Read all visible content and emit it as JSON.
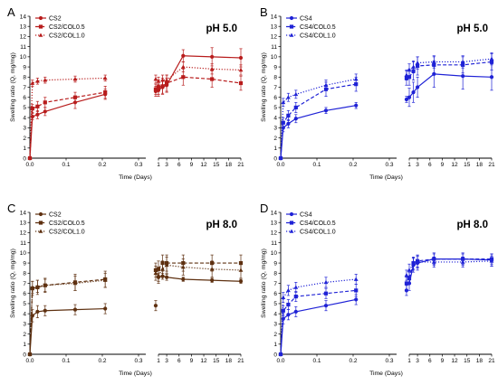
{
  "chart_data": [
    {
      "type": "line",
      "panel_label": "A",
      "annotation": "pH 5.0",
      "color": "#b81c1c",
      "xlabel": "Time (Days)",
      "ylabel": "Swelling ratio (Q, mg/mg)",
      "ylim": [
        0,
        14
      ],
      "y_ticks": [
        "0",
        "1",
        "2",
        "3",
        "4",
        "5",
        "6",
        "7",
        "8",
        "9",
        "10",
        "11",
        "12",
        "13",
        "14"
      ],
      "x_ticks_left": [
        "0.0",
        "0.1",
        "0.2",
        "0.3"
      ],
      "x_ticks_right": [
        "1",
        "3",
        "6",
        "9",
        "12",
        "15",
        "18",
        "21"
      ],
      "x_axis_break": [
        0.32,
        1
      ],
      "legend_position": "top-left",
      "series": [
        {
          "name": "CS2",
          "line": "solid",
          "marker": "circle",
          "x": [
            0,
            0.007,
            0.021,
            0.042,
            0.125,
            0.208,
            0.33,
            1,
            2,
            3,
            7,
            14,
            21
          ],
          "y": [
            0,
            4.1,
            4.3,
            4.6,
            5.5,
            6.3,
            6.6,
            6.7,
            7.0,
            7.2,
            10.1,
            10.0,
            9.9
          ],
          "err": [
            0,
            0.3,
            0.4,
            0.4,
            0.6,
            0.5,
            0.5,
            0.6,
            0.6,
            0.7,
            0.6,
            0.9,
            0.9
          ]
        },
        {
          "name": "CS2/COL0.5",
          "line": "dashed",
          "marker": "square",
          "x": [
            0,
            0.007,
            0.021,
            0.042,
            0.125,
            0.208,
            0.33,
            1,
            2,
            3,
            7,
            14,
            21
          ],
          "y": [
            0,
            4.9,
            5.1,
            5.5,
            6.0,
            6.5,
            6.8,
            7.0,
            7.1,
            7.4,
            8.0,
            7.8,
            7.4
          ],
          "err": [
            0,
            0.4,
            0.5,
            0.5,
            0.5,
            0.6,
            0.5,
            0.7,
            0.8,
            0.8,
            0.8,
            0.8,
            0.7
          ]
        },
        {
          "name": "CS2/COL1.0",
          "line": "dotted",
          "marker": "triangle",
          "x": [
            0,
            0.007,
            0.021,
            0.042,
            0.125,
            0.208,
            0.33,
            1,
            2,
            3,
            7,
            14,
            21
          ],
          "y": [
            0,
            7.4,
            7.6,
            7.7,
            7.8,
            7.9,
            7.8,
            7.6,
            7.7,
            7.7,
            9.0,
            8.8,
            8.7
          ],
          "err": [
            0,
            0.3,
            0.3,
            0.3,
            0.3,
            0.3,
            0.4,
            0.4,
            0.5,
            0.5,
            0.5,
            0.5,
            0.5
          ]
        }
      ]
    },
    {
      "type": "line",
      "panel_label": "B",
      "annotation": "pH 5.0",
      "color": "#1f22d6",
      "xlabel": "Time (Days)",
      "ylabel": "Swelling ratio (Q, mg/mg)",
      "ylim": [
        0,
        14
      ],
      "y_ticks": [
        "0",
        "1",
        "2",
        "3",
        "4",
        "5",
        "6",
        "7",
        "8",
        "9",
        "10",
        "11",
        "12",
        "13",
        "14"
      ],
      "x_ticks_left": [
        "0.0",
        "0.1",
        "0.2",
        "0.3"
      ],
      "x_ticks_right": [
        "1",
        "3",
        "6",
        "9",
        "12",
        "15",
        "18",
        "21"
      ],
      "x_axis_break": [
        0.32,
        1
      ],
      "legend_position": "top-left",
      "series": [
        {
          "name": "CS4",
          "line": "solid",
          "marker": "circle",
          "x": [
            0,
            0.007,
            0.021,
            0.042,
            0.125,
            0.208,
            0.33,
            1,
            2,
            3,
            7,
            14,
            21
          ],
          "y": [
            0,
            3.0,
            3.4,
            3.9,
            4.7,
            5.2,
            5.8,
            6.0,
            6.5,
            7.0,
            8.3,
            8.1,
            8.0
          ],
          "err": [
            0,
            0.4,
            0.4,
            0.4,
            0.3,
            0.3,
            0.3,
            0.9,
            1.0,
            1.0,
            1.3,
            1.3,
            1.3
          ]
        },
        {
          "name": "CS4/COL0.5",
          "line": "dashed",
          "marker": "square",
          "x": [
            0,
            0.007,
            0.021,
            0.042,
            0.125,
            0.208,
            0.33,
            1,
            2,
            3,
            7,
            14,
            21
          ],
          "y": [
            0,
            3.5,
            4.2,
            5.0,
            6.8,
            7.3,
            7.9,
            8.0,
            8.6,
            9.1,
            9.2,
            9.2,
            9.5
          ],
          "err": [
            0,
            0.5,
            0.5,
            0.5,
            0.7,
            0.7,
            0.7,
            0.8,
            0.9,
            0.9,
            0.8,
            0.8,
            0.8
          ]
        },
        {
          "name": "CS4/COL1.0",
          "line": "dotted",
          "marker": "triangle",
          "x": [
            0,
            0.007,
            0.021,
            0.042,
            0.125,
            0.208,
            0.33,
            1,
            2,
            3,
            7,
            14,
            21
          ],
          "y": [
            0,
            5.5,
            6.0,
            6.3,
            7.2,
            7.8,
            8.2,
            8.7,
            9.0,
            9.4,
            9.5,
            9.5,
            9.8
          ],
          "err": [
            0,
            0.4,
            0.4,
            0.4,
            0.5,
            0.5,
            0.5,
            0.6,
            0.6,
            0.6,
            0.6,
            0.6,
            0.6
          ]
        }
      ]
    },
    {
      "type": "line",
      "panel_label": "C",
      "annotation": "pH 8.0",
      "color": "#5e3010",
      "xlabel": "Time (Days)",
      "ylabel": "Swelling ratio (Q, mg/mg)",
      "ylim": [
        0,
        14
      ],
      "y_ticks": [
        "0",
        "1",
        "2",
        "3",
        "4",
        "5",
        "6",
        "7",
        "8",
        "9",
        "10",
        "11",
        "12",
        "13",
        "14"
      ],
      "x_ticks_left": [
        "0.0",
        "0.1",
        "0.2",
        "0.3"
      ],
      "x_ticks_right": [
        "1",
        "3",
        "6",
        "9",
        "12",
        "15",
        "18",
        "21"
      ],
      "x_axis_break": [
        0.32,
        1
      ],
      "legend_position": "top-left",
      "series": [
        {
          "name": "CS2",
          "line": "solid",
          "marker": "circle",
          "x": [
            0,
            0.007,
            0.021,
            0.042,
            0.125,
            0.208,
            0.33,
            1,
            2,
            3,
            7,
            14,
            21
          ],
          "y": [
            0,
            3.8,
            4.2,
            4.3,
            4.4,
            4.5,
            4.8,
            7.6,
            7.7,
            7.6,
            7.4,
            7.3,
            7.2
          ],
          "err": [
            0,
            0.6,
            0.6,
            0.5,
            0.5,
            0.5,
            0.5,
            0.4,
            0.3,
            0.3,
            0.2,
            0.2,
            0.2
          ]
        },
        {
          "name": "CS2/COL0.5",
          "line": "dashed",
          "marker": "square",
          "x": [
            0,
            0.007,
            0.021,
            0.042,
            0.125,
            0.208,
            0.33,
            1,
            2,
            3,
            7,
            14,
            21
          ],
          "y": [
            0,
            6.5,
            6.6,
            6.8,
            7.1,
            7.4,
            8.3,
            8.4,
            9.0,
            9.0,
            9.0,
            9.0,
            9.0
          ],
          "err": [
            0,
            0.7,
            0.7,
            0.7,
            0.8,
            0.8,
            0.7,
            0.8,
            0.8,
            0.8,
            0.8,
            0.8,
            0.8
          ]
        },
        {
          "name": "CS2/COL1.0",
          "line": "dotted",
          "marker": "triangle",
          "x": [
            0,
            0.007,
            0.021,
            0.042,
            0.125,
            0.208,
            0.33,
            1,
            2,
            3,
            7,
            14,
            21
          ],
          "y": [
            0,
            6.6,
            6.7,
            6.8,
            7.0,
            7.3,
            8.0,
            7.8,
            8.4,
            8.8,
            8.6,
            8.4,
            8.3
          ],
          "err": [
            0,
            0.6,
            0.6,
            0.6,
            0.7,
            0.7,
            0.7,
            0.8,
            0.8,
            0.8,
            0.8,
            0.8,
            0.8
          ]
        }
      ]
    },
    {
      "type": "line",
      "panel_label": "D",
      "annotation": "pH 8.0",
      "color": "#1f22d6",
      "xlabel": "Time (Days)",
      "ylabel": "Swelling ratio (Q, mg/mg)",
      "ylim": [
        0,
        14
      ],
      "y_ticks": [
        "0",
        "1",
        "2",
        "3",
        "4",
        "5",
        "6",
        "7",
        "8",
        "9",
        "10",
        "11",
        "12",
        "13",
        "14"
      ],
      "x_ticks_left": [
        "0.0",
        "0.1",
        "0.2",
        "0.3"
      ],
      "x_ticks_right": [
        "1",
        "3",
        "6",
        "9",
        "12",
        "15",
        "18",
        "21"
      ],
      "x_axis_break": [
        0.32,
        1
      ],
      "legend_position": "top-left",
      "series": [
        {
          "name": "CS4",
          "line": "solid",
          "marker": "circle",
          "x": [
            0,
            0.007,
            0.021,
            0.042,
            0.125,
            0.208,
            0.33,
            1,
            2,
            3,
            7,
            14,
            21
          ],
          "y": [
            0,
            3.5,
            3.9,
            4.2,
            4.8,
            5.4,
            6.3,
            7.0,
            8.8,
            9.0,
            9.4,
            9.4,
            9.3
          ],
          "err": [
            0,
            0.5,
            0.5,
            0.5,
            0.5,
            0.5,
            0.5,
            0.7,
            0.7,
            0.7,
            0.6,
            0.6,
            0.6
          ]
        },
        {
          "name": "CS4/COL0.5",
          "line": "dashed",
          "marker": "square",
          "x": [
            0,
            0.007,
            0.021,
            0.042,
            0.125,
            0.208,
            0.33,
            1,
            2,
            3,
            7,
            14,
            21
          ],
          "y": [
            0,
            4.3,
            4.9,
            5.7,
            6.0,
            6.3,
            7.0,
            7.5,
            9.0,
            9.2,
            9.4,
            9.4,
            9.4
          ],
          "err": [
            0,
            0.5,
            0.5,
            0.5,
            0.5,
            0.6,
            0.6,
            0.6,
            0.6,
            0.6,
            0.5,
            0.5,
            0.5
          ]
        },
        {
          "name": "CS4/COL1.0",
          "line": "dotted",
          "marker": "triangle",
          "x": [
            0,
            0.007,
            0.021,
            0.042,
            0.125,
            0.208,
            0.33,
            1,
            2,
            3,
            7,
            14,
            21
          ],
          "y": [
            0,
            5.6,
            6.3,
            6.6,
            7.1,
            7.4,
            7.8,
            8.3,
            8.9,
            9.1,
            9.1,
            9.1,
            9.2
          ],
          "err": [
            0,
            0.5,
            0.5,
            0.5,
            0.5,
            0.5,
            0.5,
            0.6,
            0.6,
            0.6,
            0.5,
            0.5,
            0.5
          ]
        }
      ]
    }
  ]
}
